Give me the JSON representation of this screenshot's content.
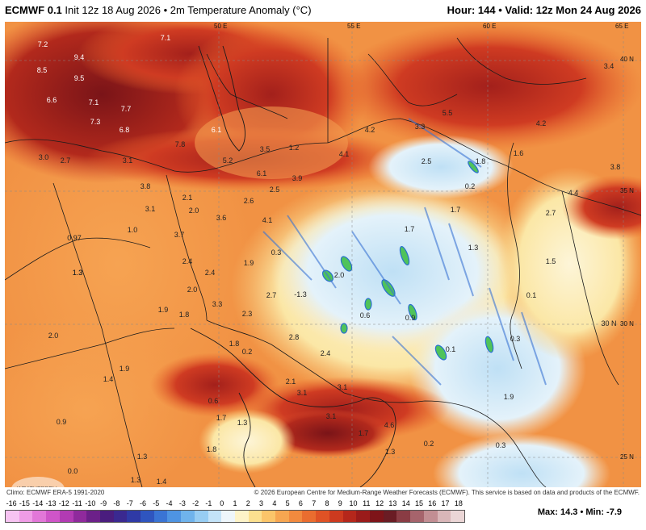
{
  "header": {
    "model": "ECMWF 0.1",
    "deg": "°",
    "init": "Init 12z 18 Aug 2026",
    "sep": "•",
    "field": "2m Temperature Anomaly (°C)",
    "hour": "Hour: 144",
    "valid": "Valid: 12z Mon 24 Aug 2026"
  },
  "footer": {
    "climo": "Climo: ECMWF ERA-5 1991-2020",
    "copyright": "© 2026 European Centre for Medium-Range Weather Forecasts (ECMWF). This service is based on data and products of the ECMWF."
  },
  "stats": {
    "max": "Max: 14.3",
    "min": "Min: -7.9"
  },
  "legend": {
    "ticks": [
      "-16",
      "-15",
      "-14",
      "-13",
      "-12",
      "-11",
      "-10",
      "-9",
      "-8",
      "-7",
      "-6",
      "-5",
      "-4",
      "-3",
      "-2",
      "-1",
      "0",
      "1",
      "2",
      "3",
      "4",
      "5",
      "6",
      "7",
      "8",
      "9",
      "10",
      "11",
      "12",
      "13",
      "14",
      "15",
      "16",
      "17",
      "18"
    ],
    "colors": [
      "#f7c3f2",
      "#ef9ce6",
      "#e277d8",
      "#cf55c8",
      "#b23bb3",
      "#8f2a9c",
      "#6c2089",
      "#4a1d7e",
      "#3a2990",
      "#2f3aa6",
      "#2f55bf",
      "#3a74d4",
      "#4e94e2",
      "#6fb3ec",
      "#97cdf3",
      "#c3e3f8",
      "#eef6fb",
      "#fdf3c8",
      "#fbe08f",
      "#fbc56a",
      "#f7a651",
      "#f28a3e",
      "#ea6d2f",
      "#df5225",
      "#cd3a1f",
      "#b5271b",
      "#9a1b1a",
      "#7e1419",
      "#6a1c24",
      "#8a3c44",
      "#a6646c",
      "#c28e93",
      "#d9b6b8",
      "#ebd6d6"
    ]
  },
  "coords": {
    "lon50": "50 E",
    "lon55": "55 E",
    "lon60": "60 E",
    "lon65": "65 E",
    "lat40": "40 N",
    "lat35": "35 N",
    "lat30": "30 N",
    "lat25": "25 N"
  },
  "values": [
    "7.2",
    "7.1",
    "9.4",
    "8.5",
    "9.5",
    "6.6",
    "7.1",
    "7.7",
    "7.3",
    "6.8",
    "6.1",
    "7.8",
    "5.5",
    "4.2",
    "3.3",
    "3.4",
    "4.2",
    "1.6",
    "3.0",
    "2.7",
    "3.1",
    "3.5",
    "1.2",
    "5.2",
    "6.1",
    "4.1",
    "3.9",
    "2.5",
    "1.8",
    "3.8",
    "4.4",
    "0.2",
    "2.5",
    "3.8",
    "2.1",
    "2.0",
    "3.6",
    "2.6",
    "1.7",
    "2.7",
    "3.1",
    "4.1",
    "1.7",
    "1.3",
    "1.0",
    "3.7",
    "0.97",
    "0.3",
    "1.3",
    "1.5",
    "2.4",
    "1.9",
    "2.0",
    "1.3",
    "2.4",
    "0.1",
    "-1.3",
    "2.0",
    "0.6",
    "0.9",
    "1.9",
    "3.3",
    "2.7",
    "0.3",
    "1.8",
    "2.3",
    "2.8",
    "30 N",
    "2.0",
    "1.8",
    "0.2",
    "0.1",
    "2.4",
    "1.4",
    "1.9",
    "2.1",
    "3.1",
    "3.1",
    "1.9",
    "0.6",
    "1.7",
    "1.3",
    "3.1",
    "1.7",
    "4.6",
    "0.9",
    "1.8",
    "1.3",
    "0.3",
    "0.2",
    "1.3",
    "1.4",
    "0.0",
    "1.3"
  ],
  "logo": "WEATHERBELL"
}
